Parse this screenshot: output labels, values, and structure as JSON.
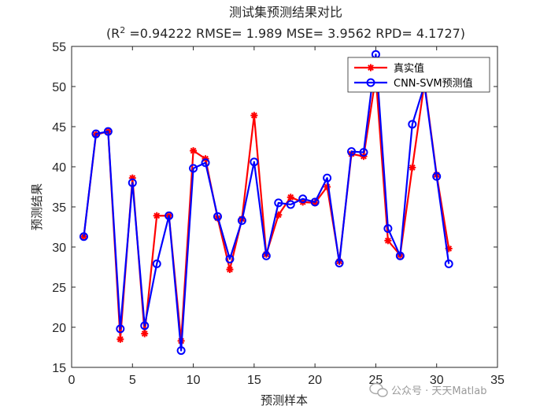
{
  "chart_data": {
    "type": "line",
    "title": "测试集预测结果对比",
    "subtitle": {
      "prefix": "(R",
      "sup": "2",
      "rest": " =0.94222 RMSE= 1.989 MSE= 3.9562 RPD= 4.1727)"
    },
    "xlabel": "预测样本",
    "ylabel": "预测结果",
    "xlim": [
      0,
      35
    ],
    "ylim": [
      15,
      55
    ],
    "xticks": [
      0,
      5,
      10,
      15,
      20,
      25,
      30,
      35
    ],
    "yticks": [
      15,
      20,
      25,
      30,
      35,
      40,
      45,
      50,
      55
    ],
    "legend_position": "top-right",
    "x": [
      1,
      2,
      3,
      4,
      5,
      6,
      7,
      8,
      9,
      10,
      11,
      12,
      13,
      14,
      15,
      16,
      17,
      18,
      19,
      20,
      21,
      22,
      23,
      24,
      25,
      26,
      27,
      28,
      29,
      30,
      31
    ],
    "series": [
      {
        "name": "真实值",
        "color": "#ff0000",
        "marker": "asterisk",
        "values": [
          31.3,
          44.0,
          44.4,
          18.5,
          38.6,
          19.2,
          33.9,
          33.9,
          18.3,
          42.0,
          41.0,
          33.6,
          27.2,
          33.5,
          46.4,
          29.1,
          34.0,
          36.2,
          35.6,
          35.5,
          37.5,
          28.2,
          41.6,
          41.3,
          51.2,
          30.8,
          29.0,
          39.9,
          50.5,
          39.0,
          29.8
        ]
      },
      {
        "name": "CNN-SVM预测值",
        "color": "#0000ff",
        "marker": "circle",
        "values": [
          31.3,
          44.1,
          44.4,
          19.8,
          38.0,
          20.2,
          27.9,
          33.9,
          17.1,
          39.8,
          40.5,
          33.8,
          28.5,
          33.3,
          40.6,
          28.9,
          35.5,
          35.3,
          36.0,
          35.6,
          38.6,
          28.0,
          41.9,
          41.8,
          54.0,
          32.3,
          28.9,
          45.3,
          50.2,
          38.8,
          27.9
        ]
      }
    ]
  },
  "watermark": {
    "text": "公众号 · 天天Matlab",
    "icon": "wechat-logo-icon"
  }
}
